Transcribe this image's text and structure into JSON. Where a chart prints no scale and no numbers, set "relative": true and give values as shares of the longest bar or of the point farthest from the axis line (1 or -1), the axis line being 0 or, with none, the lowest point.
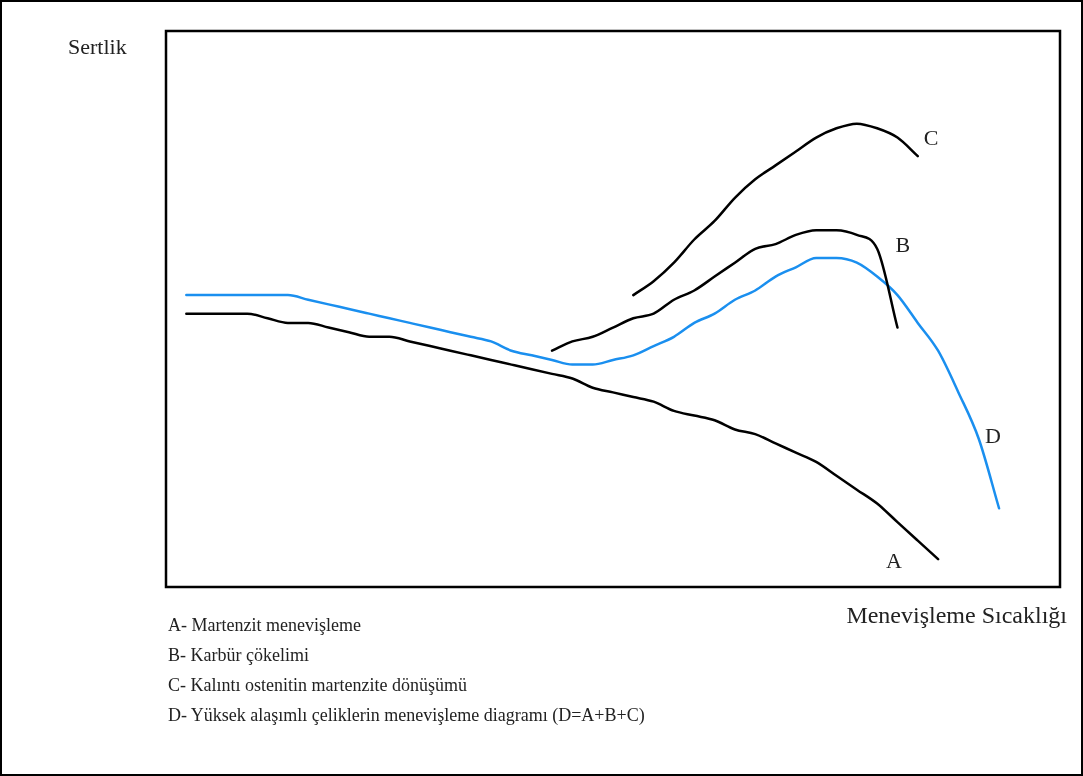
{
  "chart_data": {
    "type": "line",
    "relative": true,
    "xlabel": "Menevişleme Sıcaklığı",
    "ylabel": "Sertlik",
    "marker": "none",
    "legend": false,
    "categories": [
      null,
      null,
      null,
      null,
      null,
      null,
      null,
      null,
      null,
      null,
      null,
      null,
      null,
      null,
      null,
      null,
      null,
      null,
      null,
      null,
      null,
      null,
      null,
      null,
      null,
      null,
      null,
      null,
      null,
      null,
      null,
      null,
      null,
      null,
      null,
      null,
      null,
      null,
      null,
      null,
      null,
      null,
      null,
      null,
      null
    ],
    "series": [
      {
        "name": "A",
        "color": "#000000",
        "values": [
          null,
          0.59,
          0.59,
          0.59,
          0.59,
          0.58,
          0.57,
          0.57,
          0.56,
          0.55,
          0.54,
          0.54,
          0.53,
          0.52,
          0.51,
          0.5,
          0.49,
          0.48,
          0.47,
          0.46,
          0.45,
          0.43,
          0.42,
          0.41,
          0.4,
          0.38,
          0.37,
          0.36,
          0.34,
          0.33,
          0.31,
          0.29,
          0.27,
          0.24,
          0.21,
          0.18,
          0.14,
          0.1,
          0.06,
          null,
          null,
          null,
          null,
          null,
          null
        ]
      },
      {
        "name": "B",
        "color": "#000000",
        "values": [
          null,
          null,
          null,
          null,
          null,
          null,
          null,
          null,
          null,
          null,
          null,
          null,
          null,
          null,
          null,
          null,
          null,
          null,
          null,
          0.51,
          0.53,
          0.54,
          0.56,
          0.58,
          0.59,
          0.62,
          0.64,
          0.67,
          0.7,
          0.73,
          0.74,
          0.76,
          0.77,
          0.77,
          0.76,
          0.73,
          0.56,
          null,
          null,
          null,
          null,
          null,
          null,
          null,
          null
        ]
      },
      {
        "name": "C",
        "color": "#000000",
        "values": [
          null,
          null,
          null,
          null,
          null,
          null,
          null,
          null,
          null,
          null,
          null,
          null,
          null,
          null,
          null,
          null,
          null,
          null,
          null,
          null,
          null,
          null,
          null,
          0.63,
          0.66,
          0.7,
          0.75,
          0.79,
          0.84,
          0.88,
          0.91,
          0.94,
          0.97,
          0.99,
          1,
          0.99,
          0.97,
          0.93,
          null,
          null,
          null,
          null,
          null,
          null,
          null
        ]
      },
      {
        "name": "D",
        "color": "#1a8fef",
        "values": [
          null,
          0.63,
          0.63,
          0.63,
          0.63,
          0.63,
          0.63,
          0.62,
          0.61,
          0.6,
          0.59,
          0.58,
          0.57,
          0.56,
          0.55,
          0.54,
          0.53,
          0.51,
          0.5,
          0.49,
          0.48,
          0.48,
          0.49,
          0.5,
          0.52,
          0.54,
          0.57,
          0.59,
          0.62,
          0.64,
          0.67,
          0.69,
          0.71,
          0.71,
          0.7,
          0.67,
          0.63,
          0.57,
          0.51,
          0.42,
          0.32,
          0.17,
          null,
          null,
          null
        ]
      }
    ],
    "annotations": [
      "A- Martenzit menevişleme",
      "B- Karbür çökelimi",
      "C- Kalıntı ostenitin martenzite dönüşümü",
      "D- Yüksek alaşımlı çeliklerin menevişleme diagramı (D=A+B+C)"
    ]
  }
}
